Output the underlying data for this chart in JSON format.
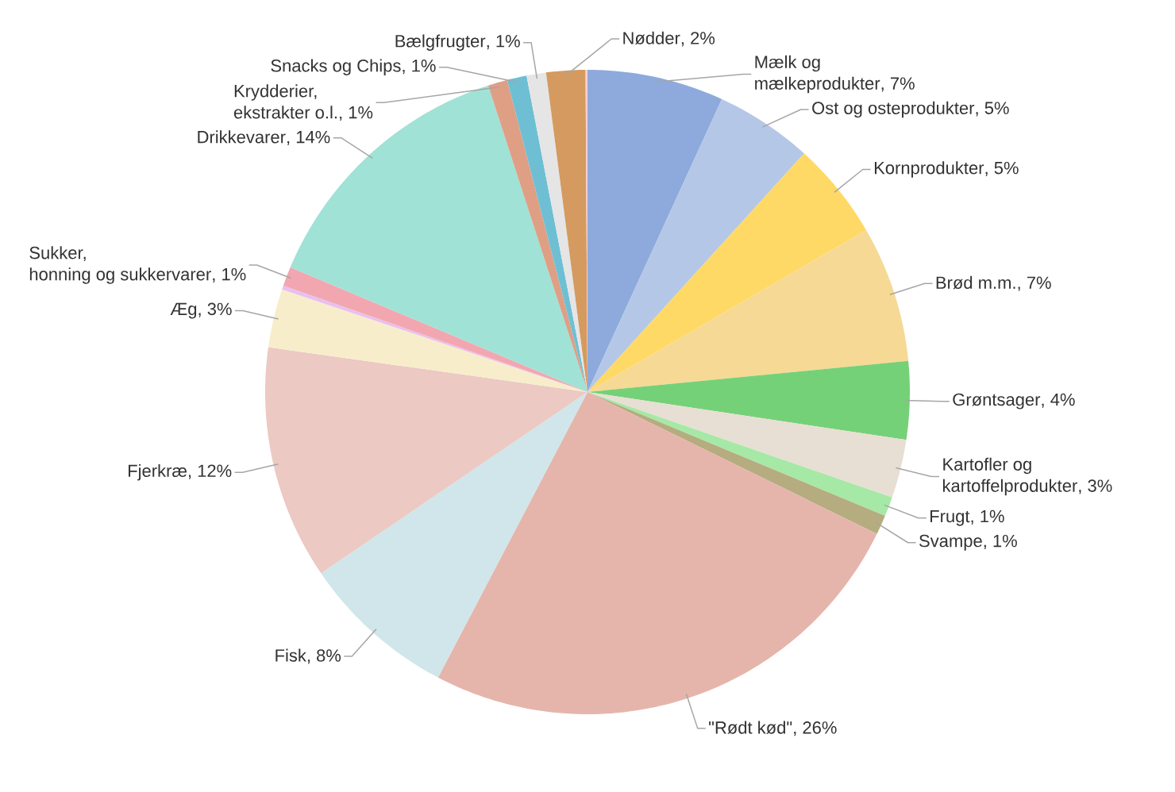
{
  "chart_data": {
    "type": "pie",
    "categories": [
      "Mælk og mælkeprodukter",
      "Ost og osteprodukter",
      "Kornprodukter",
      "Brød m.m.",
      "Grøntsager",
      "Kartofler og kartoffelprodukter",
      "Frugt",
      "Svampe",
      "\"Rødt kød\"",
      "Fisk",
      "Fjerkræ",
      "Æg",
      null,
      "Sukker, honning og sukkervarer",
      "Drikkevarer",
      "Krydderier, ekstrakter o.l.",
      "Snacks og Chips",
      "Bælgfrugter",
      "Nødder",
      null
    ],
    "values": [
      7,
      5,
      5,
      7,
      4,
      3,
      1,
      1,
      26,
      8,
      12,
      3,
      0.2,
      1,
      14,
      1,
      1,
      1,
      2,
      0.1
    ],
    "value_labels": [
      ", 7%",
      ", 5%",
      ", 5%",
      ", 7%",
      ", 4%",
      ", 3%",
      ", 1%",
      ", 1%",
      ", 26%",
      ", 8%",
      ", 12%",
      ", 3%",
      null,
      ", 1%",
      ", 14%",
      ", 1%",
      ", 1%",
      ", 1%",
      ", 2%",
      null
    ],
    "colors": [
      "#8eaadc",
      "#b4c7e7",
      "#ffd966",
      "#f5d995",
      "#75d177",
      "#e7dfd3",
      "#a6e8a6",
      "#b5ac80",
      "#e5b5ab",
      "#d0e6ea",
      "#ecc9c3",
      "#f8edcb",
      "#e8c0f0",
      "#f2a7b0",
      "#a0e2d6",
      "#df9f85",
      "#6ebfd3",
      "#e5e5e5",
      "#d49a60",
      "#f8d0d0"
    ]
  }
}
